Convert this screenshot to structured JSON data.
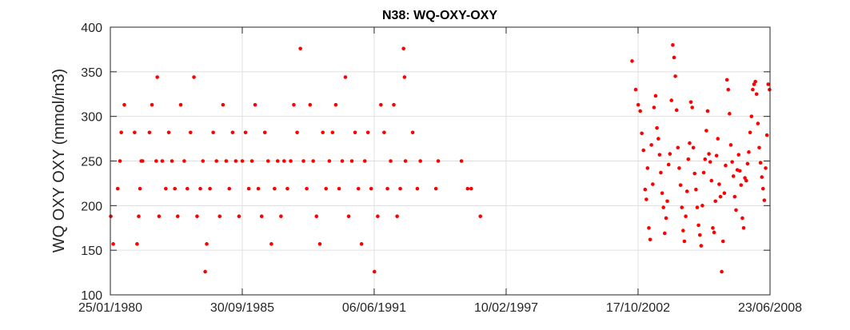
{
  "chart_data": {
    "type": "scatter",
    "title": "N38: WQ-OXY-OXY",
    "xlabel": "",
    "ylabel": "WQ OXY OXY (mmol/m3)",
    "x_type": "date",
    "xlim": [
      "1980-01-25",
      "2008-06-23"
    ],
    "ylim": [
      100,
      400
    ],
    "x_ticks": [
      "25/01/1980",
      "30/09/1985",
      "06/06/1991",
      "10/02/1997",
      "17/10/2002",
      "23/06/2008"
    ],
    "y_ticks": [
      "100",
      "150",
      "200",
      "250",
      "300",
      "350",
      "400"
    ],
    "grid": true,
    "marker_color": "#ff0000",
    "series": [
      {
        "points": [
          [
            "1980-02-01",
            188
          ],
          [
            "1980-03-10",
            157
          ],
          [
            "1980-05-20",
            219
          ],
          [
            "1980-06-25",
            250
          ],
          [
            "1980-07-15",
            282
          ],
          [
            "1980-09-01",
            313
          ],
          [
            "1981-02-10",
            282
          ],
          [
            "1981-03-20",
            157
          ],
          [
            "1981-04-15",
            188
          ],
          [
            "1981-05-05",
            219
          ],
          [
            "1981-05-25",
            250
          ],
          [
            "1981-06-15",
            250
          ],
          [
            "1981-10-01",
            282
          ],
          [
            "1981-11-10",
            313
          ],
          [
            "1982-01-15",
            250
          ],
          [
            "1982-02-01",
            344
          ],
          [
            "1982-03-01",
            188
          ],
          [
            "1982-04-20",
            250
          ],
          [
            "1982-06-15",
            219
          ],
          [
            "1982-08-01",
            282
          ],
          [
            "1982-09-20",
            250
          ],
          [
            "1982-11-05",
            219
          ],
          [
            "1982-12-20",
            188
          ],
          [
            "1983-02-05",
            313
          ],
          [
            "1983-04-01",
            250
          ],
          [
            "1983-05-20",
            219
          ],
          [
            "1983-07-10",
            282
          ],
          [
            "1983-09-01",
            344
          ],
          [
            "1983-10-20",
            188
          ],
          [
            "1983-12-10",
            219
          ],
          [
            "1984-01-20",
            250
          ],
          [
            "1984-02-25",
            126
          ],
          [
            "1984-03-20",
            157
          ],
          [
            "1984-05-10",
            219
          ],
          [
            "1984-06-30",
            282
          ],
          [
            "1984-08-20",
            250
          ],
          [
            "1984-10-10",
            188
          ],
          [
            "1984-12-01",
            313
          ],
          [
            "1985-01-20",
            250
          ],
          [
            "1985-03-10",
            219
          ],
          [
            "1985-05-01",
            282
          ],
          [
            "1985-06-20",
            250
          ],
          [
            "1985-08-10",
            188
          ],
          [
            "1985-10-01",
            250
          ],
          [
            "1985-11-20",
            282
          ],
          [
            "1986-01-10",
            219
          ],
          [
            "1986-03-01",
            250
          ],
          [
            "1986-04-20",
            313
          ],
          [
            "1986-06-10",
            219
          ],
          [
            "1986-08-01",
            188
          ],
          [
            "1986-09-20",
            282
          ],
          [
            "1986-11-10",
            250
          ],
          [
            "1987-01-01",
            157
          ],
          [
            "1987-02-20",
            219
          ],
          [
            "1987-04-10",
            250
          ],
          [
            "1987-06-01",
            188
          ],
          [
            "1987-07-20",
            250
          ],
          [
            "1987-09-10",
            219
          ],
          [
            "1987-11-01",
            250
          ],
          [
            "1987-12-20",
            313
          ],
          [
            "1988-02-10",
            282
          ],
          [
            "1988-04-01",
            376
          ],
          [
            "1988-05-20",
            250
          ],
          [
            "1988-07-10",
            219
          ],
          [
            "1988-09-01",
            313
          ],
          [
            "1988-10-20",
            250
          ],
          [
            "1988-12-10",
            188
          ],
          [
            "1989-02-01",
            157
          ],
          [
            "1989-03-20",
            282
          ],
          [
            "1989-05-10",
            219
          ],
          [
            "1989-07-01",
            250
          ],
          [
            "1989-08-20",
            282
          ],
          [
            "1989-10-10",
            313
          ],
          [
            "1989-12-01",
            219
          ],
          [
            "1990-01-20",
            250
          ],
          [
            "1990-03-10",
            344
          ],
          [
            "1990-05-01",
            188
          ],
          [
            "1990-06-20",
            250
          ],
          [
            "1990-08-10",
            282
          ],
          [
            "1990-10-01",
            219
          ],
          [
            "1990-11-20",
            157
          ],
          [
            "1991-01-10",
            250
          ],
          [
            "1991-03-01",
            282
          ],
          [
            "1991-04-20",
            219
          ],
          [
            "1991-06-10",
            126
          ],
          [
            "1991-08-01",
            188
          ],
          [
            "1991-09-20",
            313
          ],
          [
            "1991-11-10",
            282
          ],
          [
            "1992-01-01",
            219
          ],
          [
            "1992-02-20",
            250
          ],
          [
            "1992-04-10",
            313
          ],
          [
            "1992-06-01",
            188
          ],
          [
            "1992-07-20",
            219
          ],
          [
            "1992-09-10",
            376
          ],
          [
            "1992-09-25",
            344
          ],
          [
            "1992-10-10",
            250
          ],
          [
            "1993-02-01",
            282
          ],
          [
            "1993-04-15",
            219
          ],
          [
            "1993-06-01",
            250
          ],
          [
            "1994-02-01",
            219
          ],
          [
            "1994-03-10",
            250
          ],
          [
            "1995-03-10",
            250
          ],
          [
            "1995-06-15",
            219
          ],
          [
            "1995-08-10",
            219
          ],
          [
            "1996-01-01",
            188
          ],
          [
            "2002-07-15",
            362
          ],
          [
            "2002-09-10",
            330
          ],
          [
            "2002-10-20",
            313
          ],
          [
            "2002-11-20",
            306
          ],
          [
            "2002-12-15",
            281
          ],
          [
            "2003-01-10",
            262
          ],
          [
            "2003-02-05",
            218
          ],
          [
            "2003-02-25",
            207
          ],
          [
            "2003-03-15",
            242
          ],
          [
            "2003-04-05",
            175
          ],
          [
            "2003-04-25",
            162
          ],
          [
            "2003-05-15",
            268
          ],
          [
            "2003-06-05",
            224
          ],
          [
            "2003-06-25",
            310
          ],
          [
            "2003-07-20",
            323
          ],
          [
            "2003-08-10",
            287
          ],
          [
            "2003-09-01",
            275
          ],
          [
            "2003-09-20",
            257
          ],
          [
            "2003-10-10",
            237
          ],
          [
            "2003-11-01",
            214
          ],
          [
            "2003-11-20",
            198
          ],
          [
            "2003-12-10",
            169
          ],
          [
            "2004-01-01",
            186
          ],
          [
            "2004-01-20",
            205
          ],
          [
            "2004-02-10",
            246
          ],
          [
            "2004-03-01",
            258
          ],
          [
            "2004-03-25",
            318
          ],
          [
            "2004-04-15",
            380
          ],
          [
            "2004-05-05",
            366
          ],
          [
            "2004-05-25",
            345
          ],
          [
            "2004-06-15",
            307
          ],
          [
            "2004-07-05",
            265
          ],
          [
            "2004-07-25",
            242
          ],
          [
            "2004-08-15",
            223
          ],
          [
            "2004-09-05",
            198
          ],
          [
            "2004-09-25",
            172
          ],
          [
            "2004-10-15",
            160
          ],
          [
            "2004-11-05",
            188
          ],
          [
            "2004-11-25",
            216
          ],
          [
            "2004-12-15",
            252
          ],
          [
            "2005-01-05",
            270
          ],
          [
            "2005-01-25",
            316
          ],
          [
            "2005-02-15",
            310
          ],
          [
            "2005-03-05",
            265
          ],
          [
            "2005-03-25",
            236
          ],
          [
            "2005-04-15",
            218
          ],
          [
            "2005-05-05",
            198
          ],
          [
            "2005-05-25",
            178
          ],
          [
            "2005-06-15",
            167
          ],
          [
            "2005-07-05",
            155
          ],
          [
            "2005-07-25",
            200
          ],
          [
            "2005-08-15",
            237
          ],
          [
            "2005-09-05",
            252
          ],
          [
            "2005-09-25",
            284
          ],
          [
            "2005-10-15",
            306
          ],
          [
            "2005-11-05",
            258
          ],
          [
            "2005-11-25",
            249
          ],
          [
            "2005-12-15",
            228
          ],
          [
            "2006-01-05",
            175
          ],
          [
            "2006-01-25",
            170
          ],
          [
            "2006-02-15",
            205
          ],
          [
            "2006-03-05",
            256
          ],
          [
            "2006-03-25",
            275
          ],
          [
            "2006-04-15",
            224
          ],
          [
            "2006-05-05",
            210
          ],
          [
            "2006-05-25",
            126
          ],
          [
            "2006-06-15",
            160
          ],
          [
            "2006-07-05",
            214
          ],
          [
            "2006-07-25",
            245
          ],
          [
            "2006-08-15",
            341
          ],
          [
            "2006-09-05",
            330
          ],
          [
            "2006-09-25",
            303
          ],
          [
            "2006-10-15",
            268
          ],
          [
            "2006-11-05",
            249
          ],
          [
            "2006-11-25",
            233
          ],
          [
            "2006-12-15",
            210
          ],
          [
            "2007-01-05",
            195
          ],
          [
            "2007-01-25",
            240
          ],
          [
            "2007-02-15",
            257
          ],
          [
            "2007-03-05",
            239
          ],
          [
            "2007-03-25",
            223
          ],
          [
            "2007-04-15",
            186
          ],
          [
            "2007-05-05",
            175
          ],
          [
            "2007-05-25",
            231
          ],
          [
            "2007-06-15",
            228
          ],
          [
            "2007-07-05",
            247
          ],
          [
            "2007-07-25",
            260
          ],
          [
            "2007-08-15",
            282
          ],
          [
            "2007-09-05",
            300
          ],
          [
            "2007-09-25",
            330
          ],
          [
            "2007-10-15",
            336
          ],
          [
            "2007-11-05",
            339
          ],
          [
            "2007-11-25",
            325
          ],
          [
            "2007-12-15",
            292
          ],
          [
            "2008-01-05",
            265
          ],
          [
            "2008-01-25",
            248
          ],
          [
            "2008-02-15",
            232
          ],
          [
            "2008-03-05",
            219
          ],
          [
            "2008-03-25",
            206
          ],
          [
            "2008-04-15",
            242
          ],
          [
            "2008-05-05",
            279
          ],
          [
            "2008-05-25",
            336
          ],
          [
            "2008-06-15",
            330
          ]
        ]
      }
    ]
  }
}
